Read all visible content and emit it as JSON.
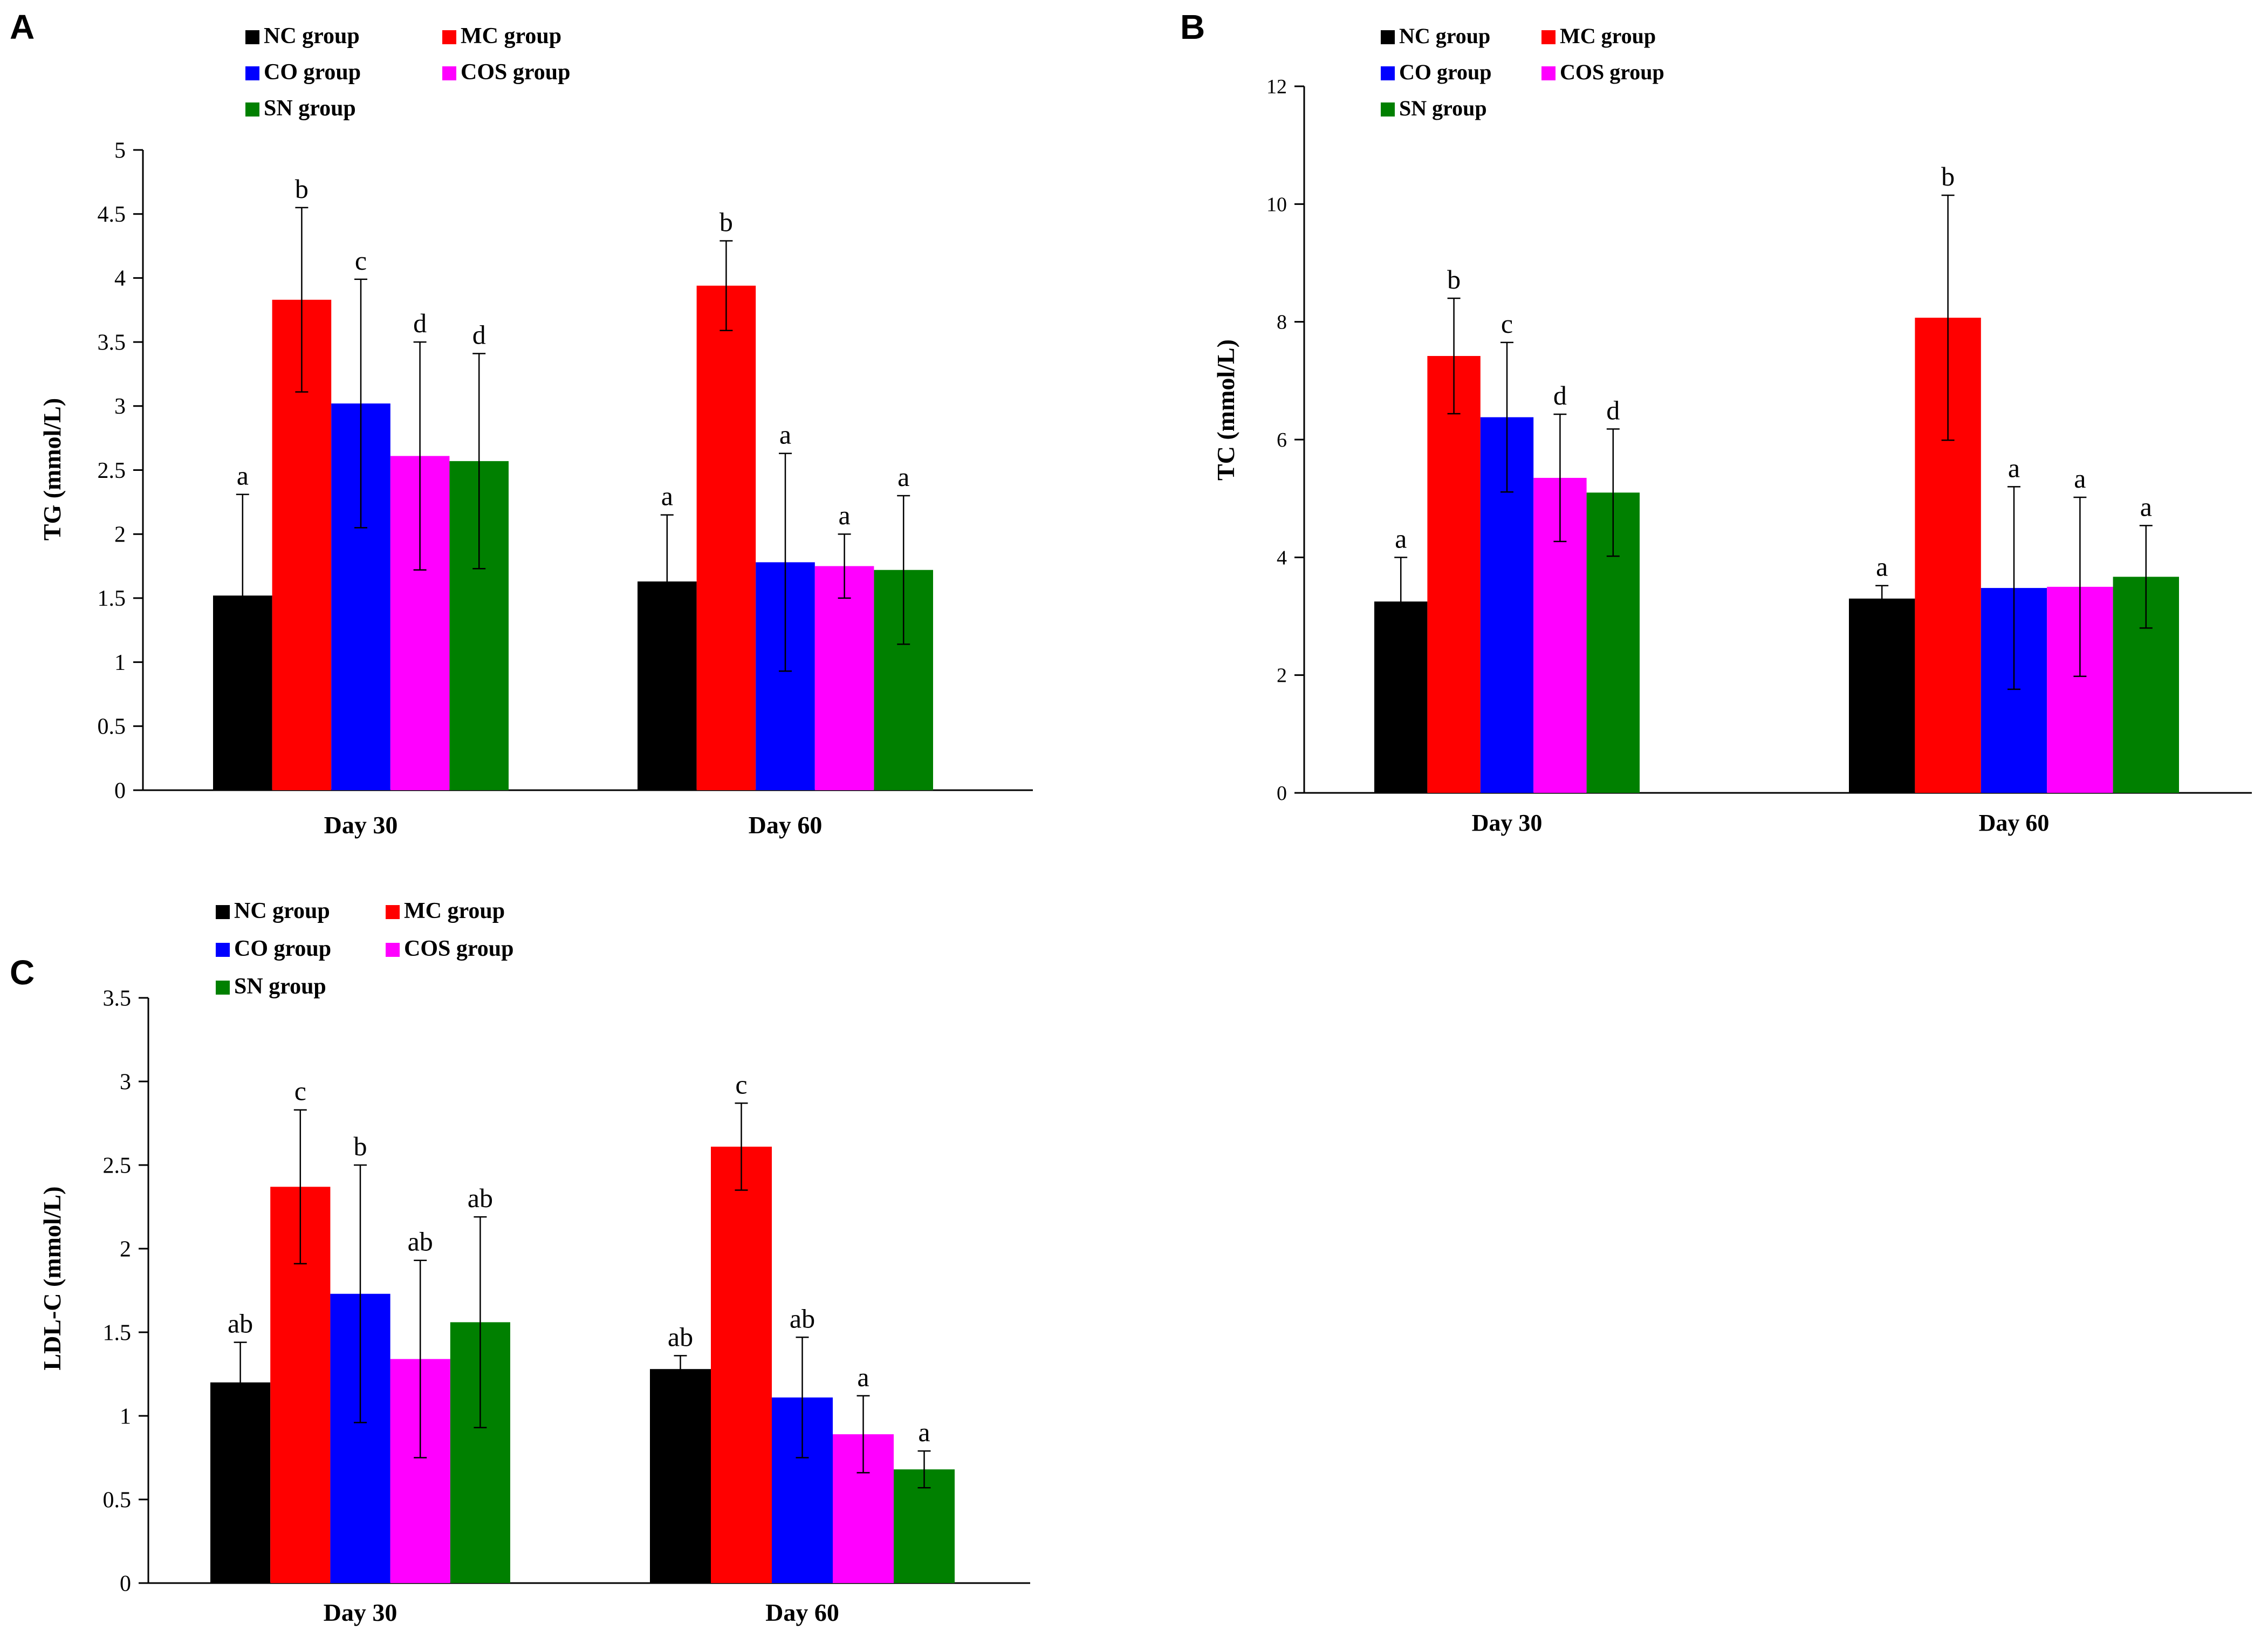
{
  "colors": {
    "NC group": "#000000",
    "MC group": "#ff0000",
    "CO group": "#0000ff",
    "COS group": "#ff00ff",
    "SN group": "#008000",
    "axis": "#000000",
    "error_bar": "#000000"
  },
  "chart_data": [
    {
      "panel": "A",
      "type": "bar",
      "ylabel": "TG (mmol/L)",
      "ylim": [
        0,
        5
      ],
      "yticks": [
        "0",
        "0.5",
        "1",
        "1.5",
        "2",
        "2.5",
        "3",
        "3.5",
        "4",
        "4.5",
        "5"
      ],
      "ytick_values": [
        0,
        0.5,
        1,
        1.5,
        2,
        2.5,
        3,
        3.5,
        4,
        4.5,
        5
      ],
      "categories": [
        "Day 30",
        "Day 60"
      ],
      "legend": [
        "NC group",
        "MC group",
        "CO group",
        "COS group",
        "SN group"
      ],
      "series": [
        {
          "name": "NC group",
          "values": [
            1.52,
            1.63
          ],
          "errors": [
            0.79,
            0.52
          ],
          "labels": [
            "a",
            "a"
          ]
        },
        {
          "name": "MC group",
          "values": [
            3.83,
            3.94
          ],
          "errors": [
            0.72,
            0.35
          ],
          "labels": [
            "b",
            "b"
          ]
        },
        {
          "name": "CO group",
          "values": [
            3.02,
            1.78
          ],
          "errors": [
            0.97,
            0.85
          ],
          "labels": [
            "c",
            "a"
          ]
        },
        {
          "name": "COS group",
          "values": [
            2.61,
            1.75
          ],
          "errors": [
            0.89,
            0.25
          ],
          "labels": [
            "d",
            "a"
          ]
        },
        {
          "name": "SN group",
          "values": [
            2.57,
            1.72
          ],
          "errors": [
            0.84,
            0.58
          ],
          "labels": [
            "d",
            "a"
          ]
        }
      ]
    },
    {
      "panel": "B",
      "type": "bar",
      "ylabel": "TC (mmol/L)",
      "ylim": [
        0,
        12
      ],
      "yticks": [
        "0",
        "2",
        "4",
        "6",
        "8",
        "10",
        "12"
      ],
      "ytick_values": [
        0,
        2,
        4,
        6,
        8,
        10,
        12
      ],
      "categories": [
        "Day 30",
        "Day 60"
      ],
      "legend": [
        "NC group",
        "MC group",
        "CO group",
        "COS group",
        "SN group"
      ],
      "series": [
        {
          "name": "NC group",
          "values": [
            3.25,
            3.3
          ],
          "errors": [
            0.75,
            0.22
          ],
          "labels": [
            "a",
            "a"
          ]
        },
        {
          "name": "MC group",
          "values": [
            7.42,
            8.07
          ],
          "errors": [
            0.98,
            2.08
          ],
          "labels": [
            "b",
            "b"
          ]
        },
        {
          "name": "CO group",
          "values": [
            6.38,
            3.48
          ],
          "errors": [
            1.27,
            1.72
          ],
          "labels": [
            "c",
            "a"
          ]
        },
        {
          "name": "COS group",
          "values": [
            5.35,
            3.5
          ],
          "errors": [
            1.08,
            1.52
          ],
          "labels": [
            "d",
            "a"
          ]
        },
        {
          "name": "SN group",
          "values": [
            5.1,
            3.67
          ],
          "errors": [
            1.08,
            0.87
          ],
          "labels": [
            "d",
            "a"
          ]
        }
      ]
    },
    {
      "panel": "C",
      "type": "bar",
      "ylabel": "LDL-C (mmol/L)",
      "ylim": [
        0,
        3.5
      ],
      "yticks": [
        "0",
        "0.5",
        "1",
        "1.5",
        "2",
        "2.5",
        "3",
        "3.5"
      ],
      "ytick_values": [
        0,
        0.5,
        1,
        1.5,
        2,
        2.5,
        3,
        3.5
      ],
      "categories": [
        "Day 30",
        "Day 60"
      ],
      "legend": [
        "NC group",
        "MC group",
        "CO group",
        "COS group",
        "SN group"
      ],
      "series": [
        {
          "name": "NC group",
          "values": [
            1.2,
            1.28
          ],
          "errors": [
            0.24,
            0.08
          ],
          "labels": [
            "ab",
            "ab"
          ]
        },
        {
          "name": "MC group",
          "values": [
            2.37,
            2.61
          ],
          "errors": [
            0.46,
            0.26
          ],
          "labels": [
            "c",
            "c"
          ]
        },
        {
          "name": "CO group",
          "values": [
            1.73,
            1.11
          ],
          "errors": [
            0.77,
            0.36
          ],
          "labels": [
            "b",
            "ab"
          ]
        },
        {
          "name": "COS group",
          "values": [
            1.34,
            0.89
          ],
          "errors": [
            0.59,
            0.23
          ],
          "labels": [
            "ab",
            "a"
          ]
        },
        {
          "name": "SN group",
          "values": [
            1.56,
            0.68
          ],
          "errors": [
            0.63,
            0.11
          ],
          "labels": [
            "ab",
            "a"
          ]
        }
      ]
    }
  ]
}
